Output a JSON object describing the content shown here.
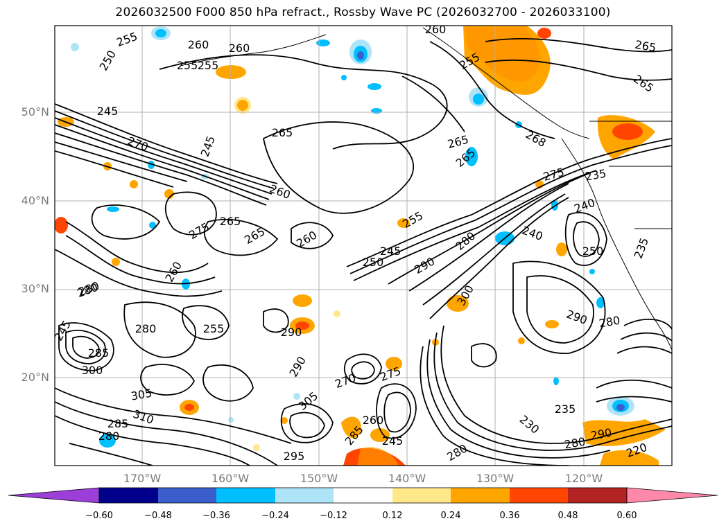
{
  "title": "2026032500 F000 850 hPa refract., Rossby Wave PC (2026032700 - 2026033100)",
  "lat_labels": [
    "50°N",
    "40°N",
    "30°N",
    "20°N"
  ],
  "lon_labels": [
    "170°W",
    "160°W",
    "150°W",
    "140°W",
    "130°W",
    "120°W"
  ],
  "colorbar": {
    "ticks": [
      "−0.60",
      "−0.48",
      "−0.36",
      "−0.24",
      "−0.12",
      "0.12",
      "0.24",
      "0.36",
      "0.48",
      "0.60"
    ],
    "colors": [
      "#9b3fd8",
      "#00008b",
      "#3a5fcd",
      "#00bfff",
      "#ade4f7",
      "#ffffff",
      "#ffe88a",
      "#ffa500",
      "#ff4500",
      "#b22222",
      "#ff88aa"
    ]
  },
  "contour_labels": [
    "255",
    "250",
    "245",
    "270",
    "245",
    "265",
    "260",
    "255",
    "260",
    "265",
    "265",
    "255",
    "260",
    "255",
    "265",
    "265",
    "260",
    "268",
    "275",
    "235",
    "255",
    "275",
    "265",
    "265",
    "260",
    "250",
    "245",
    "290",
    "280",
    "240",
    "250",
    "240",
    "235",
    "280",
    "260",
    "280",
    "245",
    "280",
    "255",
    "285",
    "300",
    "305",
    "310",
    "285",
    "280",
    "275",
    "290",
    "290",
    "270",
    "305",
    "300",
    "295",
    "285",
    "280",
    "245",
    "260",
    "235",
    "230",
    "290",
    "280",
    "280",
    "290",
    "220"
  ],
  "colors": {
    "land_line": "#000000",
    "grid": "#b0b0b0",
    "orange": "#ffa500",
    "yellow": "#ffe88a",
    "lightblue": "#ade4f7",
    "cyan": "#00bfff",
    "blue": "#3a5fcd",
    "red": "#ff4500"
  }
}
